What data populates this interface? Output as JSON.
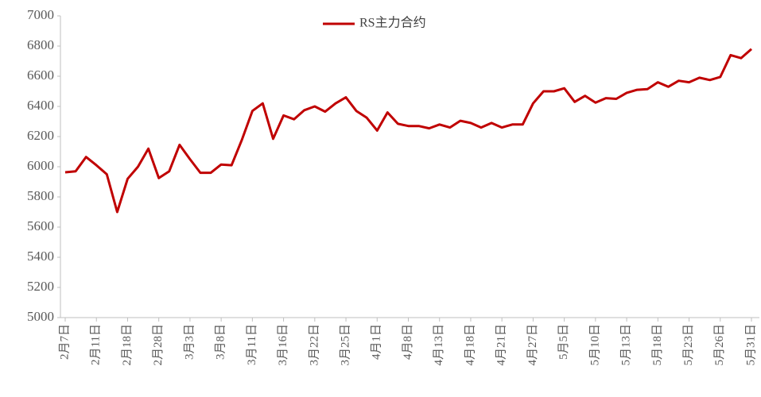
{
  "chart_data": {
    "type": "line",
    "categories": [
      "2月7日",
      null,
      null,
      "2月11日",
      null,
      null,
      "2月18日",
      null,
      null,
      "2月28日",
      null,
      null,
      "3月3日",
      null,
      null,
      "3月8日",
      null,
      null,
      "3月11日",
      null,
      null,
      "3月16日",
      null,
      null,
      "3月22日",
      null,
      null,
      "3月25日",
      null,
      null,
      "4月1日",
      null,
      null,
      "4月8日",
      null,
      null,
      "4月13日",
      null,
      null,
      "4月18日",
      null,
      null,
      "4月21日",
      null,
      null,
      "4月27日",
      null,
      null,
      "5月5日",
      null,
      null,
      "5月10日",
      null,
      null,
      "5月13日",
      null,
      null,
      "5月18日",
      null,
      null,
      "5月23日",
      null,
      null,
      "5月26日",
      null,
      null,
      "5月31日"
    ],
    "series": [
      {
        "name": "RS主力合约",
        "color": "#c00000",
        "values": [
          5963,
          5970,
          6065,
          6010,
          5950,
          5700,
          5920,
          6000,
          6120,
          5925,
          5970,
          6145,
          6050,
          5960,
          5960,
          6015,
          6010,
          6180,
          6370,
          6420,
          6185,
          6340,
          6315,
          6375,
          6400,
          6365,
          6420,
          6460,
          6370,
          6325,
          6240,
          6360,
          6285,
          6270,
          6270,
          6255,
          6280,
          6260,
          6305,
          6290,
          6260,
          6290,
          6260,
          6280,
          6280,
          6420,
          6500,
          6500,
          6520,
          6430,
          6470,
          6425,
          6455,
          6450,
          6490,
          6510,
          6515,
          6560,
          6530,
          6570,
          6560,
          6590,
          6575,
          6595,
          6740,
          6720,
          6780
        ]
      }
    ],
    "ylim": [
      5000,
      7000
    ],
    "yticks": [
      5000,
      5200,
      5400,
      5600,
      5800,
      6000,
      6200,
      6400,
      6600,
      6800,
      7000
    ],
    "legend": "top"
  }
}
